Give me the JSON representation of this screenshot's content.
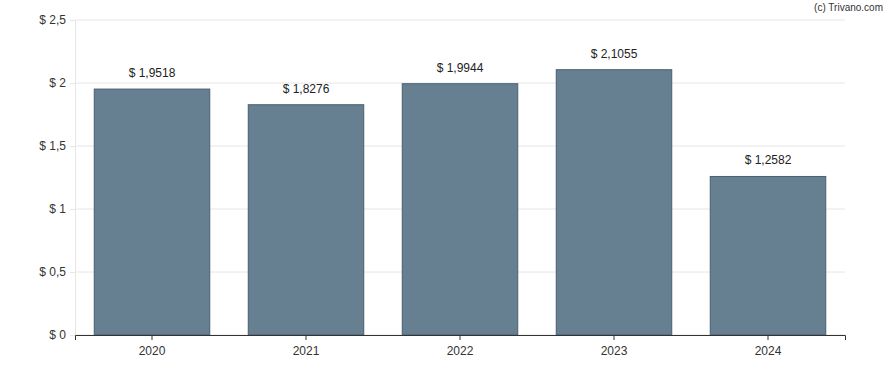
{
  "chart_data": {
    "type": "bar",
    "categories": [
      "2020",
      "2021",
      "2022",
      "2023",
      "2024"
    ],
    "values": [
      1.9518,
      1.8276,
      1.9944,
      2.1055,
      1.2582
    ],
    "value_labels": [
      "$ 1,9518",
      "$ 1,8276",
      "$ 1,9944",
      "$ 2,1055",
      "$ 1,2582"
    ],
    "data_labels": true,
    "color": "#667f91",
    "ylim": [
      0,
      2.5
    ],
    "yticks": [
      {
        "value": 0,
        "label": "$ 0"
      },
      {
        "value": 0.5,
        "label": "$ 0,5"
      },
      {
        "value": 1,
        "label": "$ 1"
      },
      {
        "value": 1.5,
        "label": "$ 1,5"
      },
      {
        "value": 2,
        "label": "$ 2"
      },
      {
        "value": 2.5,
        "label": "$ 2,5"
      }
    ],
    "grid": true,
    "annotations": [
      "(c) Trivano.com"
    ]
  }
}
